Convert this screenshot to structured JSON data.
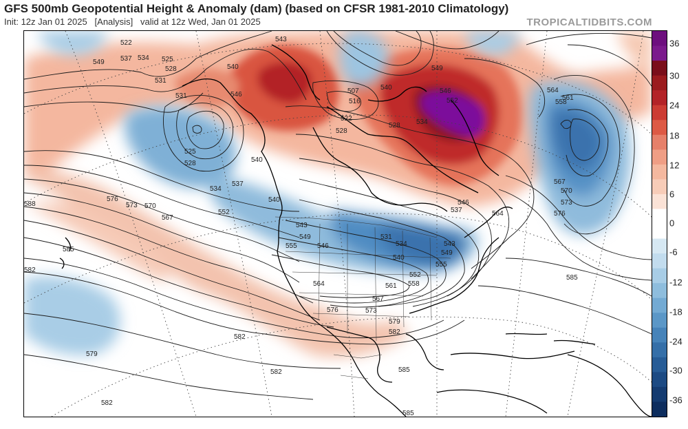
{
  "header": {
    "title": "GFS 500mb Geopotential Height & Anomaly (dam) (based on CFSR 1981-2010 Climatology)",
    "init": "Init: 12z Jan 01 2025",
    "analysis": "[Analysis]",
    "valid": "valid at 12z Wed, Jan 01 2025",
    "brand": "TROPICALTIDBITS.COM"
  },
  "colors": {
    "neg_strong": "#0f2e6b",
    "neg": "#3a78b5",
    "neg_light": "#b9d7ea",
    "neutral": "#ffffff",
    "pos_light": "#f6c9b3",
    "pos": "#e0715a",
    "pos_strong": "#9b1b1e",
    "extreme": "#7b0f9b"
  },
  "colorbar": {
    "ticks": [
      "36",
      "30",
      "24",
      "18",
      "12",
      "6",
      "0",
      "-6",
      "-12",
      "-18",
      "-24",
      "-30",
      "-36"
    ]
  },
  "contour_labels": [
    {
      "text": "522"
    },
    {
      "text": "537"
    },
    {
      "text": "534"
    },
    {
      "text": "549"
    },
    {
      "text": "525"
    },
    {
      "text": "528"
    },
    {
      "text": "531"
    },
    {
      "text": "543"
    },
    {
      "text": "540"
    },
    {
      "text": "546"
    },
    {
      "text": "531"
    },
    {
      "text": "525"
    },
    {
      "text": "528"
    },
    {
      "text": "534"
    },
    {
      "text": "537"
    },
    {
      "text": "540"
    },
    {
      "text": "540"
    },
    {
      "text": "552"
    },
    {
      "text": "567"
    },
    {
      "text": "570"
    },
    {
      "text": "573"
    },
    {
      "text": "576"
    },
    {
      "text": "588"
    },
    {
      "text": "585"
    },
    {
      "text": "582"
    },
    {
      "text": "579"
    },
    {
      "text": "582"
    },
    {
      "text": "582"
    },
    {
      "text": "582"
    },
    {
      "text": "543"
    },
    {
      "text": "549"
    },
    {
      "text": "546"
    },
    {
      "text": "555"
    },
    {
      "text": "531"
    },
    {
      "text": "534"
    },
    {
      "text": "540"
    },
    {
      "text": "543"
    },
    {
      "text": "549"
    },
    {
      "text": "555"
    },
    {
      "text": "552"
    },
    {
      "text": "558"
    },
    {
      "text": "561"
    },
    {
      "text": "564"
    },
    {
      "text": "567"
    },
    {
      "text": "573"
    },
    {
      "text": "576"
    },
    {
      "text": "579"
    },
    {
      "text": "582"
    },
    {
      "text": "585"
    },
    {
      "text": "507"
    },
    {
      "text": "516"
    },
    {
      "text": "522"
    },
    {
      "text": "528"
    },
    {
      "text": "528"
    },
    {
      "text": "534"
    },
    {
      "text": "540"
    },
    {
      "text": "549"
    },
    {
      "text": "546"
    },
    {
      "text": "552"
    },
    {
      "text": "537"
    },
    {
      "text": "546"
    },
    {
      "text": "564"
    },
    {
      "text": "564"
    },
    {
      "text": "561"
    },
    {
      "text": "558"
    },
    {
      "text": "567"
    },
    {
      "text": "570"
    },
    {
      "text": "573"
    },
    {
      "text": "576"
    },
    {
      "text": "585"
    },
    {
      "text": "585"
    }
  ]
}
